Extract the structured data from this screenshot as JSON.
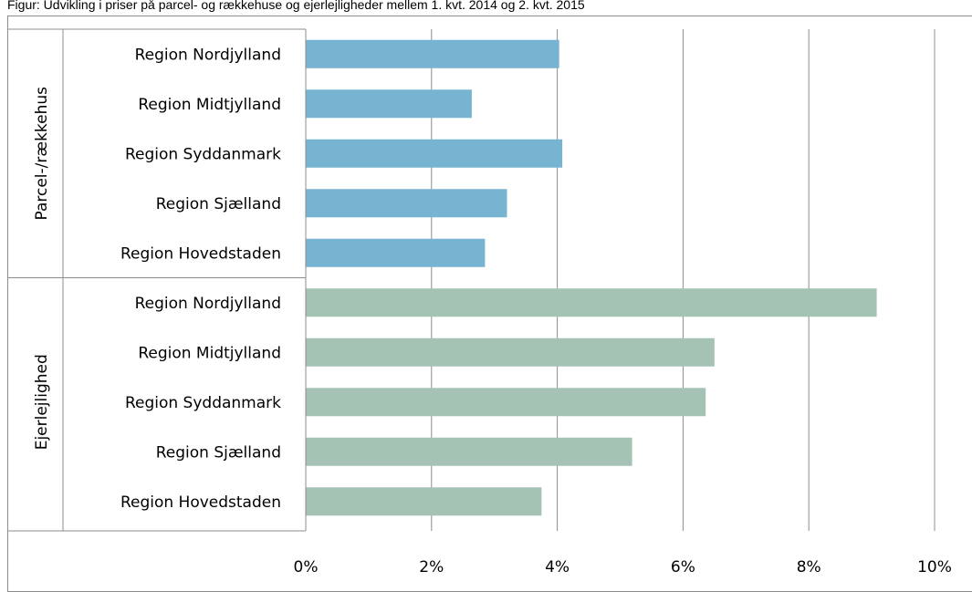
{
  "chart_data": {
    "type": "bar",
    "orientation": "horizontal",
    "title": "Figur: Udvikling i priser på parcel- og rækkehuse og ejerlejligheder mellem 1. kvt. 2014 og 2. kvt. 2015",
    "xlim": [
      0,
      10
    ],
    "x_ticks": [
      "0%",
      "2%",
      "4%",
      "6%",
      "8%",
      "10%"
    ],
    "grid": true,
    "groups": [
      {
        "name": "Parcel-/rækkehus",
        "color": "#77b4d1",
        "categories": [
          "Region Nordjylland",
          "Region Midtjylland",
          "Region Syddanmark",
          "Region Sjælland",
          "Region Hovedstaden"
        ],
        "values": [
          4.03,
          2.64,
          4.08,
          3.2,
          2.85
        ]
      },
      {
        "name": "Ejerlejlighed",
        "color": "#a5c3b5",
        "categories": [
          "Region Nordjylland",
          "Region Midtjylland",
          "Region Syddanmark",
          "Region Sjælland",
          "Region Hovedstaden"
        ],
        "values": [
          9.08,
          6.5,
          6.36,
          5.19,
          3.75
        ]
      }
    ]
  }
}
